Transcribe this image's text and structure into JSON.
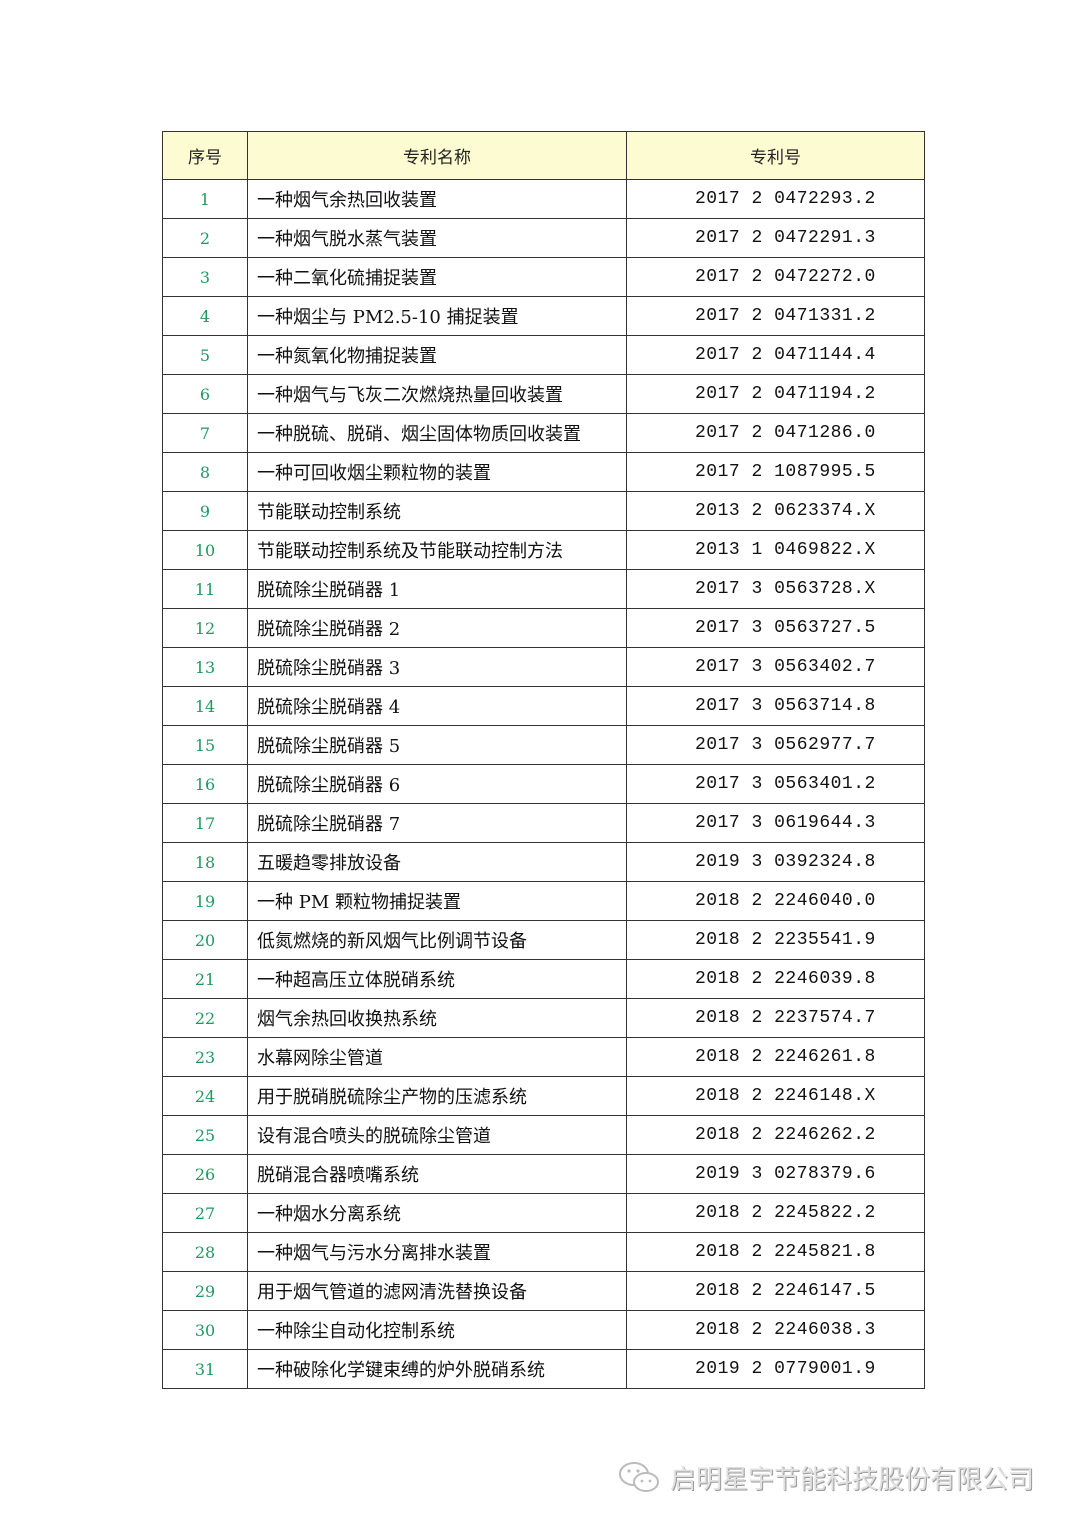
{
  "table": {
    "headers": [
      "序号",
      "专利名称",
      "专利号"
    ],
    "rows": [
      [
        "1",
        "一种烟气余热回收装置",
        "2017 2 0472293.2"
      ],
      [
        "2",
        "一种烟气脱水蒸气装置",
        "2017 2 0472291.3"
      ],
      [
        "3",
        "一种二氧化硫捕捉装置",
        "2017 2 0472272.0"
      ],
      [
        "4",
        "一种烟尘与 PM2.5-10 捕捉装置",
        "2017 2 0471331.2"
      ],
      [
        "5",
        "一种氮氧化物捕捉装置",
        "2017 2 0471144.4"
      ],
      [
        "6",
        "一种烟气与飞灰二次燃烧热量回收装置",
        "2017 2 0471194.2"
      ],
      [
        "7",
        "一种脱硫、脱硝、烟尘固体物质回收装置",
        "2017 2 0471286.0"
      ],
      [
        "8",
        "一种可回收烟尘颗粒物的装置",
        "2017 2 1087995.5"
      ],
      [
        "9",
        "节能联动控制系统",
        "2013 2 0623374.X"
      ],
      [
        "10",
        "节能联动控制系统及节能联动控制方法",
        "2013 1 0469822.X"
      ],
      [
        "11",
        "脱硫除尘脱硝器 1",
        "2017 3 0563728.X"
      ],
      [
        "12",
        "脱硫除尘脱硝器 2",
        "2017 3 0563727.5"
      ],
      [
        "13",
        "脱硫除尘脱硝器 3",
        "2017 3 0563402.7"
      ],
      [
        "14",
        "脱硫除尘脱硝器 4",
        "2017 3 0563714.8"
      ],
      [
        "15",
        "脱硫除尘脱硝器 5",
        "2017 3 0562977.7"
      ],
      [
        "16",
        "脱硫除尘脱硝器 6",
        "2017 3 0563401.2"
      ],
      [
        "17",
        "脱硫除尘脱硝器 7",
        "2017 3 0619644.3"
      ],
      [
        "18",
        "五暖趋零排放设备",
        "2019 3 0392324.8"
      ],
      [
        "19",
        "一种 PM 颗粒物捕捉装置",
        "2018 2 2246040.0"
      ],
      [
        "20",
        "低氮燃烧的新风烟气比例调节设备",
        "2018 2 2235541.9"
      ],
      [
        "21",
        "一种超高压立体脱硝系统",
        "2018 2 2246039.8"
      ],
      [
        "22",
        "烟气余热回收换热系统",
        "2018 2 2237574.7"
      ],
      [
        "23",
        "水幕网除尘管道",
        "2018 2 2246261.8"
      ],
      [
        "24",
        "用于脱硝脱硫除尘产物的压滤系统",
        "2018 2 2246148.X"
      ],
      [
        "25",
        "设有混合喷头的脱硫除尘管道",
        "2018 2 2246262.2"
      ],
      [
        "26",
        "脱硝混合器喷嘴系统",
        "2019 3 0278379.6"
      ],
      [
        "27",
        "一种烟水分离系统",
        "2018 2 2245822.2"
      ],
      [
        "28",
        "一种烟气与污水分离排水装置",
        "2018 2 2245821.8"
      ],
      [
        "29",
        "用于烟气管道的滤网清洗替换设备",
        "2018 2 2246147.5"
      ],
      [
        "30",
        "一种除尘自动化控制系统",
        "2018 2 2246038.3"
      ],
      [
        "31",
        "一种破除化学键束缚的炉外脱硝系统",
        "2019 2 0779001.9"
      ]
    ]
  },
  "footer": {
    "icon": "wechat-icon",
    "watermark": "启明星宇节能科技股份有限公司"
  },
  "colors": {
    "header_bg": "#fdfbd2",
    "index_text": "#1e9a5e",
    "border": "#333333"
  }
}
